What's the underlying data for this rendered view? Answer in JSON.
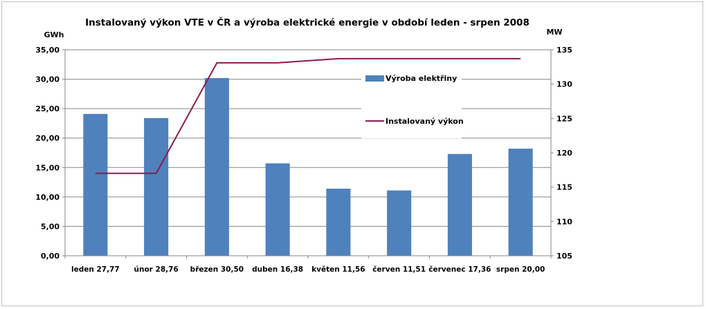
{
  "chart_data": {
    "type": "bar",
    "title": "Instalovaný výkon VTE v ČR a výroba elektrické energie v období leden - srpen 2008",
    "ylabel_left": "GWh",
    "ylabel_right": "MW",
    "categories": [
      "leden 27,77",
      "únor 28,76",
      "březen 30,50",
      "duben 16,38",
      "květen 11,56",
      "červen 11,51",
      "červenec 17,36",
      "srpen 20,00"
    ],
    "series": [
      {
        "name": "Výroba elektřiny",
        "type": "bar",
        "axis": "left",
        "color": "#4f81bd",
        "values": [
          24.1,
          23.4,
          30.2,
          15.7,
          11.4,
          11.1,
          17.3,
          18.2
        ]
      },
      {
        "name": "Instalovaný výkon",
        "type": "line",
        "axis": "right",
        "color": "#8b1a4c",
        "values": [
          117.0,
          117.0,
          133.1,
          133.1,
          133.7,
          133.7,
          133.7,
          133.7
        ]
      }
    ],
    "ylim_left": [
      0,
      35
    ],
    "ylim_right": [
      105,
      135
    ],
    "yticks_left": [
      "0,00",
      "5,00",
      "10,00",
      "15,00",
      "20,00",
      "25,00",
      "30,00",
      "35,00"
    ],
    "yticks_right": [
      "105",
      "110",
      "115",
      "120",
      "125",
      "130",
      "135"
    ],
    "grid": true,
    "legend_position": "top-right"
  }
}
